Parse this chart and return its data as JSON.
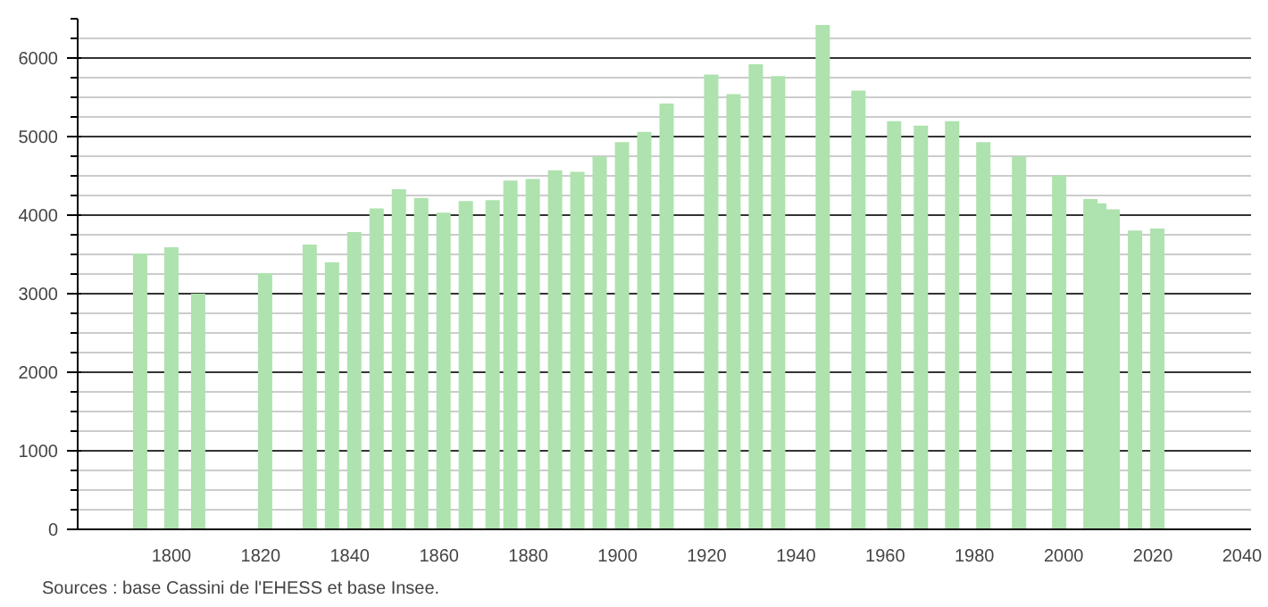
{
  "chart_data": {
    "type": "bar",
    "color": "#aee2ae",
    "x": [
      1793,
      1800,
      1806,
      1821,
      1831,
      1836,
      1841,
      1846,
      1851,
      1856,
      1861,
      1866,
      1872,
      1876,
      1881,
      1886,
      1891,
      1896,
      1901,
      1906,
      1911,
      1921,
      1926,
      1931,
      1936,
      1946,
      1954,
      1962,
      1968,
      1975,
      1982,
      1990,
      1999,
      2006,
      2008,
      2011,
      2016,
      2021
    ],
    "values": [
      3510,
      3590,
      3000,
      3260,
      3625,
      3400,
      3785,
      4085,
      4330,
      4220,
      4030,
      4180,
      4190,
      4440,
      4460,
      4570,
      4550,
      4745,
      4930,
      5060,
      5420,
      5790,
      5540,
      5920,
      5770,
      6420,
      5585,
      5195,
      5140,
      5195,
      4930,
      4745,
      4505,
      4205,
      4150,
      4075,
      3805,
      3830
    ],
    "xlim": [
      1779,
      2042
    ],
    "xticks": [
      1800,
      1820,
      1840,
      1860,
      1880,
      1900,
      1920,
      1940,
      1960,
      1980,
      2000,
      2020,
      2040
    ],
    "ylim": [
      0,
      6500
    ],
    "yticks": [
      0,
      {
        "value": 250,
        "label": null
      },
      {
        "value": 500,
        "label": null
      },
      {
        "value": 750,
        "label": null
      },
      1000,
      {
        "value": 1250,
        "label": null
      },
      {
        "value": 1500,
        "label": null
      },
      {
        "value": 1750,
        "label": null
      },
      2000,
      {
        "value": 2250,
        "label": null
      },
      {
        "value": 2500,
        "label": null
      },
      {
        "value": 2750,
        "label": null
      },
      3000,
      {
        "value": 3250,
        "label": null
      },
      {
        "value": 3500,
        "label": null
      },
      {
        "value": 3750,
        "label": null
      },
      4000,
      {
        "value": 4250,
        "label": null
      },
      {
        "value": 4500,
        "label": null
      },
      {
        "value": 4750,
        "label": null
      },
      5000,
      {
        "value": 5250,
        "label": null
      },
      {
        "value": 5500,
        "label": null
      },
      {
        "value": 5750,
        "label": null
      },
      6000,
      {
        "value": 6250,
        "label": null
      },
      {
        "value": 6500,
        "label": null
      }
    ],
    "grid": "y",
    "annotations": [
      "Sources : base Cassini de l'EHESS et base Insee."
    ]
  }
}
